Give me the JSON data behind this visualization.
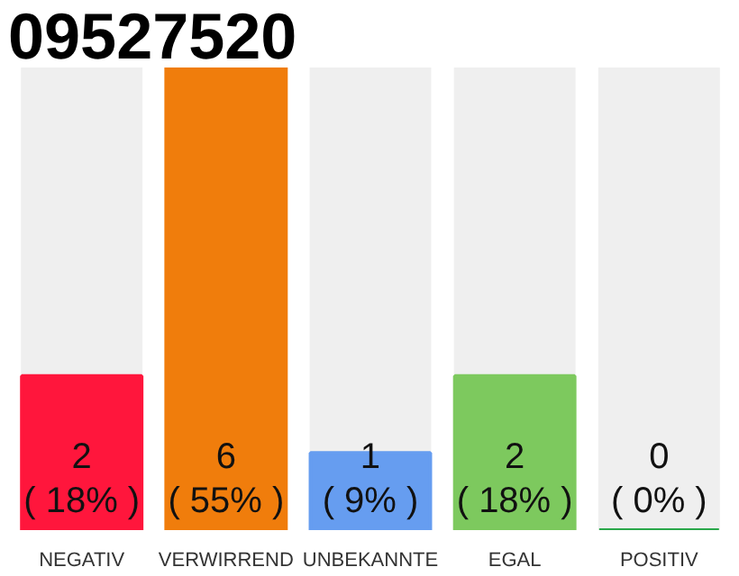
{
  "chart_data": {
    "type": "bar",
    "title": "09527520",
    "categories": [
      "NEGATIV",
      "VERWIRREND",
      "UNBEKANNTE",
      "EGAL",
      "POSITIV"
    ],
    "values": [
      2,
      6,
      1,
      2,
      0
    ],
    "colors": [
      "#ff163c",
      "#f07d0c",
      "#669df0",
      "#7dc95e",
      "#2aa84a"
    ],
    "ylim": [
      0,
      6
    ],
    "tick_labels": "x",
    "grid": false,
    "value_labels": [
      "2\n( 18% )",
      "6\n( 55% )",
      "1\n( 9% )",
      "2\n( 18% )",
      "0\n( 0% )"
    ]
  }
}
